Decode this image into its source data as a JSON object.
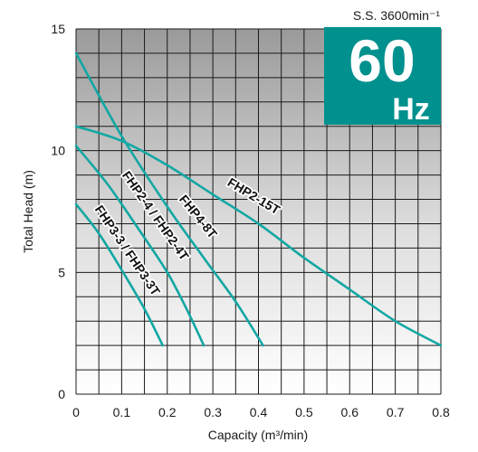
{
  "chart_data": {
    "type": "line",
    "speed_label": "S.S. 3600min⁻¹",
    "frequency_badge": {
      "value": "60",
      "unit": "Hz",
      "color": "#00908d"
    },
    "xlabel": "Capacity (m³/min)",
    "ylabel": "Total Head (m)",
    "xlim": [
      0,
      0.8
    ],
    "ylim": [
      0,
      15
    ],
    "x_ticks": [
      "0",
      "0.1",
      "0.2",
      "0.3",
      "0.4",
      "0.5",
      "0.6",
      "0.7",
      "0.8"
    ],
    "y_ticks": [
      "0",
      "5",
      "10",
      "15"
    ],
    "grid": true,
    "series_color": "#12a7a3",
    "series": [
      {
        "name": "FHP3-3 / FHP3-3T",
        "points": [
          [
            0,
            7.8
          ],
          [
            0.05,
            6.6
          ],
          [
            0.1,
            5.1
          ],
          [
            0.15,
            3.5
          ],
          [
            0.19,
            2.0
          ]
        ]
      },
      {
        "name": "FHP2-4 / FHP2-4T",
        "points": [
          [
            0,
            10.2
          ],
          [
            0.07,
            8.6
          ],
          [
            0.14,
            6.7
          ],
          [
            0.2,
            5.0
          ],
          [
            0.245,
            3.4
          ],
          [
            0.28,
            2.0
          ]
        ]
      },
      {
        "name": "FHP4-8T",
        "points": [
          [
            0,
            14.0
          ],
          [
            0.1,
            10.6
          ],
          [
            0.2,
            7.7
          ],
          [
            0.28,
            5.6
          ],
          [
            0.35,
            3.8
          ],
          [
            0.41,
            2.0
          ]
        ]
      },
      {
        "name": "FHP2-15T",
        "points": [
          [
            0,
            11.0
          ],
          [
            0.1,
            10.4
          ],
          [
            0.2,
            9.4
          ],
          [
            0.3,
            8.2
          ],
          [
            0.4,
            7.0
          ],
          [
            0.5,
            5.6
          ],
          [
            0.6,
            4.3
          ],
          [
            0.7,
            3.0
          ],
          [
            0.8,
            2.0
          ]
        ]
      }
    ]
  }
}
